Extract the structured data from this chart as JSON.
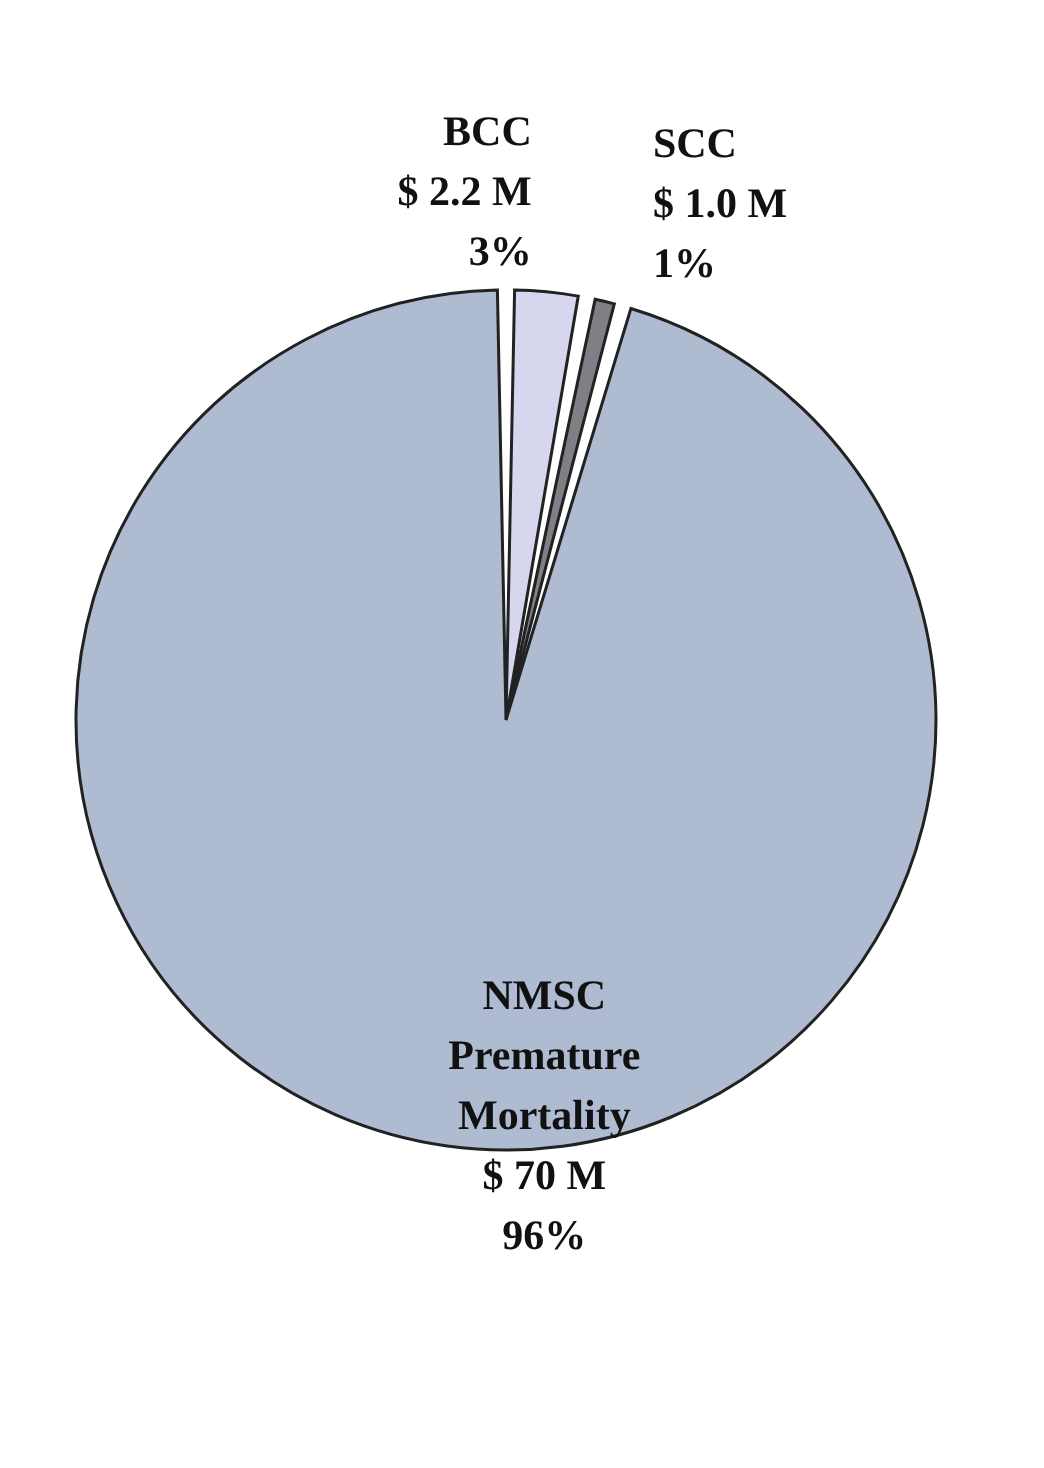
{
  "chart_data": {
    "type": "pie",
    "categories": [
      "BCC",
      "SCC",
      "NMSC Premature Mortality"
    ],
    "values": [
      2.2,
      1.0,
      70
    ],
    "value_labels": [
      "$ 2.2 M\n3%",
      "$ 1.0 M\n1%",
      "$ 70 M\n96%"
    ],
    "colors": [
      "#d6d6ee",
      "#7f7f86",
      "#aebbd0"
    ]
  }
}
